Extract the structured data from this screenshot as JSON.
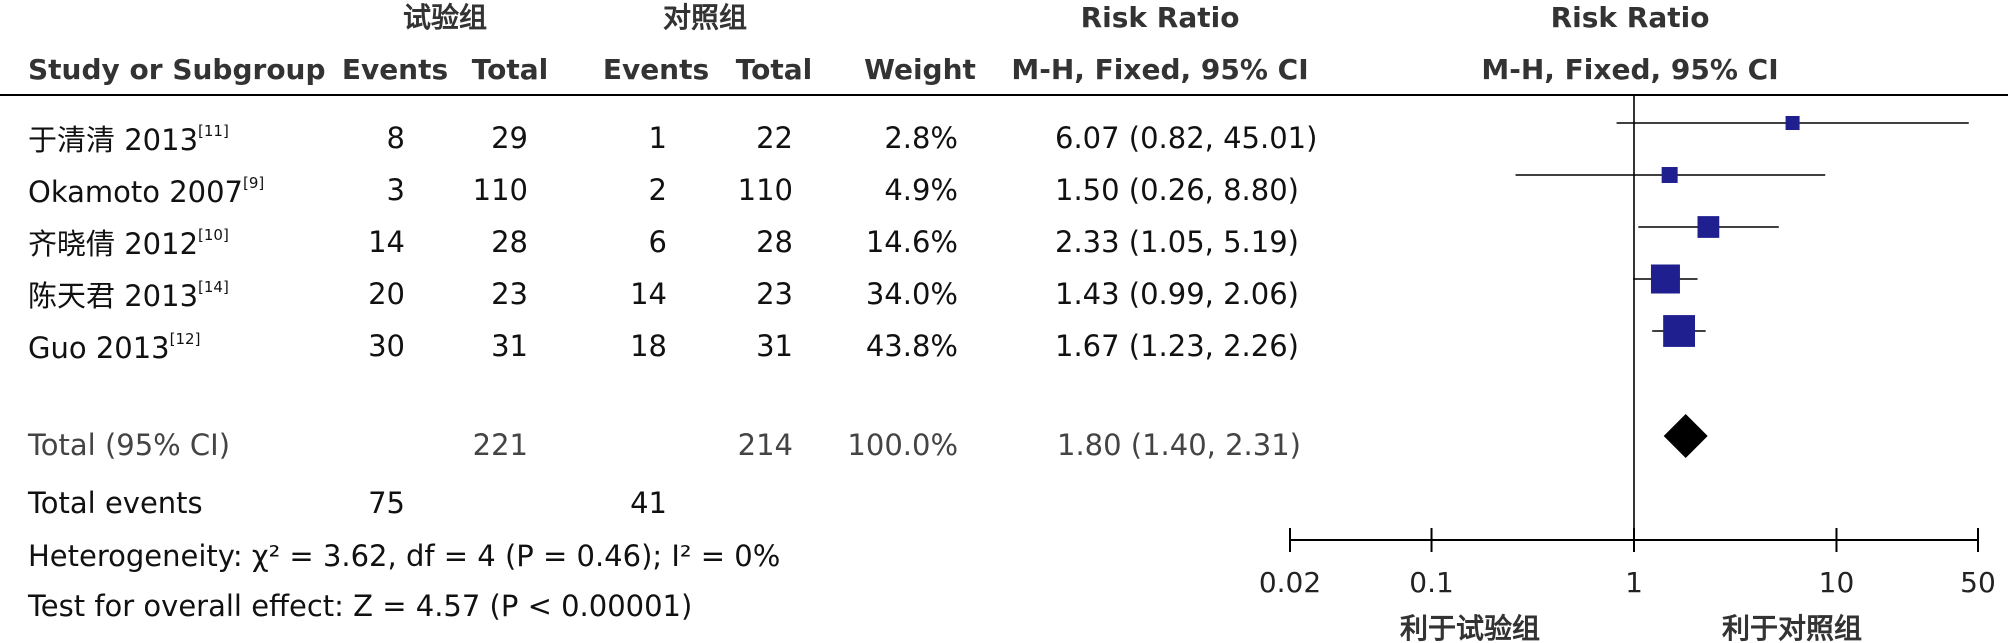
{
  "headers": {
    "group1": "试验组",
    "group2": "对照组",
    "rr_text": "Risk Ratio",
    "rr_plot": "Risk Ratio",
    "study": "Study or Subgroup",
    "events1": "Events",
    "total1": "Total",
    "events2": "Events",
    "total2": "Total",
    "weight": "Weight",
    "method_text": "M-H, Fixed, 95% CI",
    "method_plot": "M-H, Fixed, 95% CI"
  },
  "studies": [
    {
      "name": "于清清 2013",
      "ref": "[11]",
      "e1": "8",
      "t1": "29",
      "e2": "1",
      "t2": "22",
      "weight": "2.8%",
      "ci": "6.07 (0.82, 45.01)"
    },
    {
      "name": "Okamoto 2007",
      "ref": "[9]",
      "e1": "3",
      "t1": "110",
      "e2": "2",
      "t2": "110",
      "weight": "4.9%",
      "ci": "1.50 (0.26, 8.80)"
    },
    {
      "name": "齐晓倩 2012",
      "ref": "[10]",
      "e1": "14",
      "t1": "28",
      "e2": "6",
      "t2": "28",
      "weight": "14.6%",
      "ci": "2.33 (1.05, 5.19)"
    },
    {
      "name": "陈天君 2013",
      "ref": "[14]",
      "e1": "20",
      "t1": "23",
      "e2": "14",
      "t2": "23",
      "weight": "34.0%",
      "ci": "1.43 (0.99, 2.06)"
    },
    {
      "name": "Guo 2013",
      "ref": "[12]",
      "e1": "30",
      "t1": "31",
      "e2": "18",
      "t2": "31",
      "weight": "43.8%",
      "ci": "1.67 (1.23, 2.26)"
    }
  ],
  "total": {
    "label": "Total (95% CI)",
    "t1": "221",
    "t2": "214",
    "weight": "100.0%",
    "ci": "1.80 (1.40, 2.31)"
  },
  "total_events": {
    "label": "Total events",
    "e1": "75",
    "e2": "41"
  },
  "heterogeneity": "Heterogeneity: χ² = 3.62, df = 4 (P = 0.46); I² = 0%",
  "overall_effect": "Test for overall effect: Z = 4.57 (P < 0.00001)",
  "chart_data": {
    "type": "forest",
    "x_scale": "log",
    "xlim": [
      0.02,
      50
    ],
    "ticks": [
      0.02,
      0.1,
      1,
      10,
      50
    ],
    "tick_labels": [
      "0.02",
      "0.1",
      "1",
      "10",
      "50"
    ],
    "reference_line": 1,
    "favours_left": "利于试验组",
    "favours_right": "利于对照组",
    "studies": [
      {
        "rr": 6.07,
        "lo": 0.82,
        "hi": 45.01,
        "weight": 2.8
      },
      {
        "rr": 1.5,
        "lo": 0.26,
        "hi": 8.8,
        "weight": 4.9
      },
      {
        "rr": 2.33,
        "lo": 1.05,
        "hi": 5.19,
        "weight": 14.6
      },
      {
        "rr": 1.43,
        "lo": 0.99,
        "hi": 2.06,
        "weight": 34.0
      },
      {
        "rr": 1.67,
        "lo": 1.23,
        "hi": 2.26,
        "weight": 43.8
      }
    ],
    "pooled": {
      "rr": 1.8,
      "lo": 1.4,
      "hi": 2.31
    },
    "colors": {
      "square": "#1f1f8f",
      "diamond": "#000000",
      "line": "#000000"
    }
  }
}
